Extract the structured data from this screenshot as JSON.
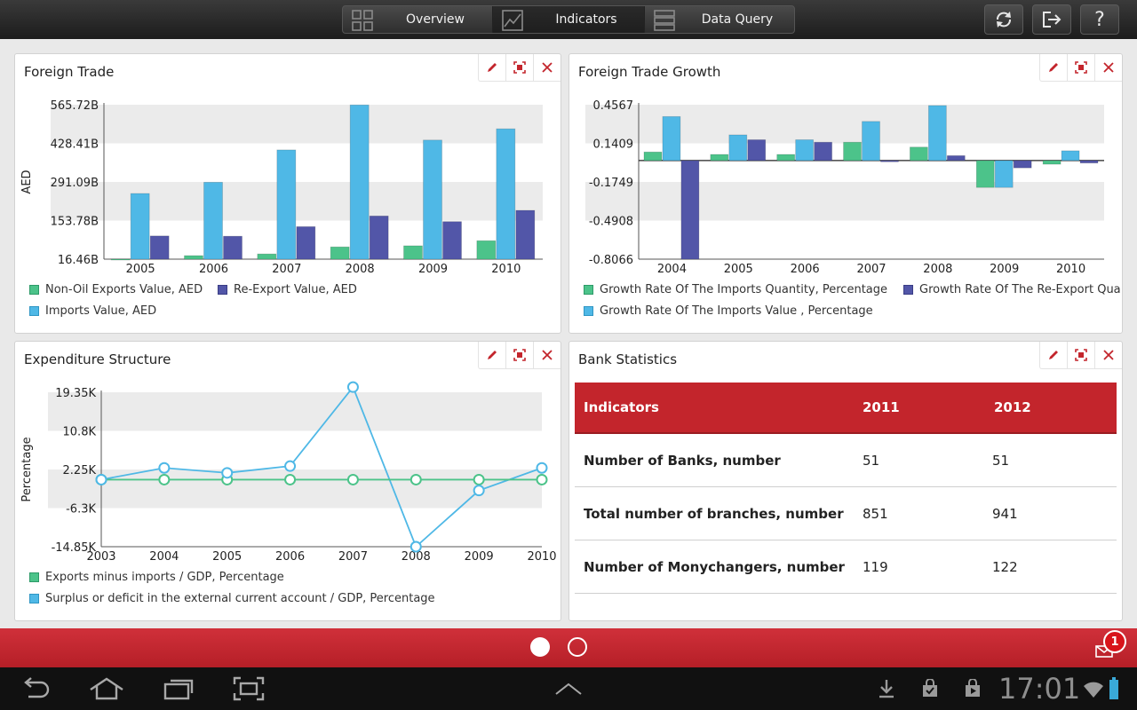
{
  "nav": {
    "tabs": [
      {
        "label": "Overview",
        "icon": "grid-icon"
      },
      {
        "label": "Indicators",
        "icon": "line-chart-icon"
      },
      {
        "label": "Data Query",
        "icon": "list-icon"
      }
    ],
    "active_tab": "Indicators",
    "actions": [
      "refresh-icon",
      "logout-icon",
      "help-icon"
    ],
    "help_label": "?"
  },
  "panels": {
    "foreign_trade": {
      "title": "Foreign Trade"
    },
    "foreign_trade_growth": {
      "title": "Foreign Trade Growth"
    },
    "expenditure_structure": {
      "title": "Expenditure Structure"
    },
    "bank_statistics": {
      "title": "Bank Statistics"
    }
  },
  "chart_data": [
    {
      "type": "bar",
      "title": "Foreign Trade",
      "ylabel": "AED",
      "yticks": [
        "565.72B",
        "428.41B",
        "291.09B",
        "153.78B",
        "16.46B"
      ],
      "categories": [
        "2005",
        "2006",
        "2007",
        "2008",
        "2009",
        "2010"
      ],
      "ylim": [
        16.46,
        565.72
      ],
      "grid": "alternating bands",
      "legend": "bottom",
      "colors": [
        "#4cc38a",
        "#4fb8e6",
        "#5256a8"
      ],
      "series": [
        {
          "name": "Non-Oil Exports Value, AED",
          "values": [
            16,
            29,
            35,
            60,
            64,
            82
          ]
        },
        {
          "name": "Imports Value, AED",
          "values": [
            250,
            290,
            405,
            565,
            440,
            480
          ]
        },
        {
          "name": "Re-Export Value, AED",
          "values": [
            99,
            98,
            132,
            170,
            150,
            190
          ]
        }
      ]
    },
    {
      "type": "bar",
      "title": "Foreign Trade Growth",
      "ylabel": "",
      "yticks": [
        "0.4567",
        "0.1409",
        "-0.1749",
        "-0.4908",
        "-0.8066"
      ],
      "categories": [
        "2004",
        "2005",
        "2006",
        "2007",
        "2008",
        "2009",
        "2010"
      ],
      "ylim": [
        -0.8066,
        0.4567
      ],
      "grid": "alternating bands",
      "legend": "bottom",
      "colors": [
        "#4cc38a",
        "#4fb8e6",
        "#5256a8"
      ],
      "series": [
        {
          "name": "Growth Rate Of The Imports  Quantity, Percentage",
          "values": [
            0.07,
            0.05,
            0.05,
            0.15,
            0.11,
            -0.22,
            -0.03
          ]
        },
        {
          "name": "Growth Rate Of The Imports Value  , Percentage",
          "values": [
            0.36,
            0.21,
            0.17,
            0.32,
            0.45,
            -0.22,
            0.08
          ]
        },
        {
          "name": "Growth Rate Of The Re-Export  Qua",
          "values": [
            -0.8066,
            0.17,
            0.15,
            -0.01,
            0.04,
            -0.06,
            -0.02
          ]
        }
      ]
    },
    {
      "type": "line",
      "title": "Expenditure Structure",
      "ylabel": "Percentage",
      "yticks": [
        "19.35K",
        "10.8K",
        "2.25K",
        "-6.3K",
        "-14.85K"
      ],
      "x": [
        "2003",
        "2004",
        "2005",
        "2006",
        "2007",
        "2008",
        "2009",
        "2010"
      ],
      "ylim": [
        -14.85,
        19.35
      ],
      "unit": "K",
      "grid": "alternating bands",
      "legend": "bottom",
      "colors": [
        "#4cc38a",
        "#4fb8e6"
      ],
      "series": [
        {
          "name": "Exports minus imports / GDP, Percentage",
          "values": [
            0.0,
            0.0,
            0.0,
            0.0,
            0.0,
            0.0,
            0.0,
            0.0
          ]
        },
        {
          "name": "Surplus or deficit in the external current account / GDP, Percentage",
          "values": [
            0.0,
            2.6,
            1.5,
            3.0,
            20.5,
            -14.85,
            -2.4,
            2.6
          ]
        }
      ]
    }
  ],
  "bank_table": {
    "headers": [
      "Indicators",
      "2011",
      "2012"
    ],
    "rows": [
      [
        "Number of Banks, number",
        "51",
        "51"
      ],
      [
        "Total number of branches, number",
        "851",
        "941"
      ],
      [
        "Number of Monychangers, number",
        "119",
        "122"
      ]
    ]
  },
  "pager": {
    "pages": 2,
    "current": 1
  },
  "notifications": {
    "count": "1"
  },
  "system": {
    "clock": "17:01"
  }
}
